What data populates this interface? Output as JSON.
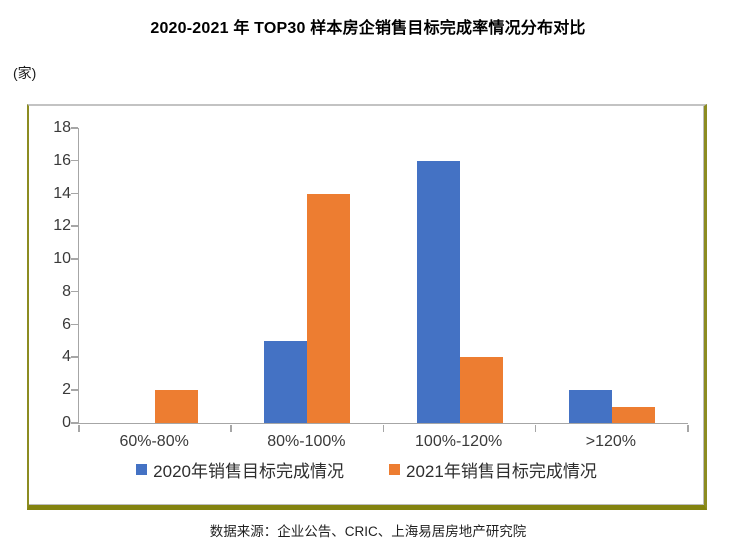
{
  "page": {
    "title": "2020-2021 年 TOP30 样本房企销售目标完成率情况分布对比",
    "unit_label": "(家)",
    "source": "数据来源：企业公告、CRIC、上海易居房地产研究院"
  },
  "colors": {
    "series_2020": "#4472C4",
    "series_2021": "#ED7D31",
    "axis": "#A6A6A6",
    "frame": "#8C8C21",
    "text": "#262626"
  },
  "chart_data": {
    "type": "bar",
    "title": "2020-2021 年 TOP30 样本房企销售目标完成率情况分布对比",
    "categories": [
      "60%-80%",
      "80%-100%",
      "100%-120%",
      ">120%"
    ],
    "series": [
      {
        "name": "2020年销售目标完成情况",
        "key": "2020",
        "color": "#4472C4",
        "values": [
          0,
          5,
          16,
          2
        ]
      },
      {
        "name": "2021年销售目标完成情况",
        "key": "2021",
        "color": "#ED7D31",
        "values": [
          2,
          14,
          4,
          1
        ]
      }
    ],
    "xlabel": "",
    "ylabel": "(家)",
    "ylim": [
      0,
      18
    ],
    "yticks": [
      0,
      2,
      4,
      6,
      8,
      10,
      12,
      14,
      16,
      18
    ],
    "grid": false,
    "legend_position": "bottom"
  }
}
